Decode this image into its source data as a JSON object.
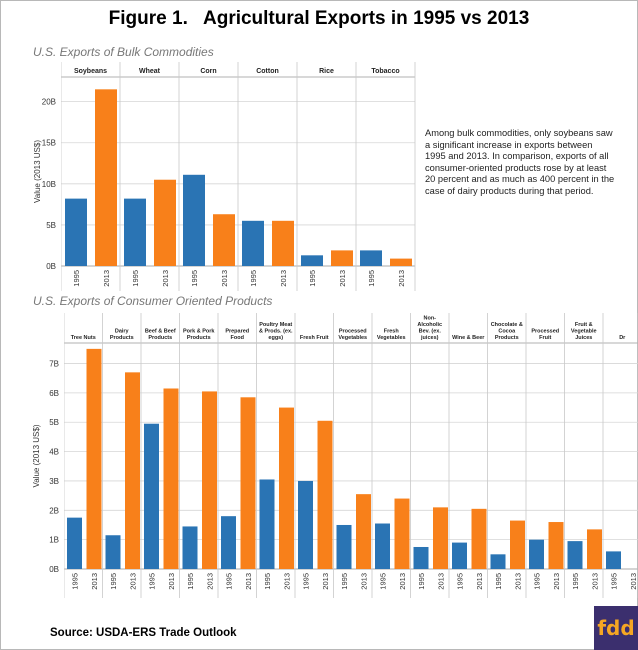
{
  "title": "Figure 1.   Agricultural Exports in 1995 vs 2013",
  "note": "Among bulk commodities, only soybeans saw a significant increase in exports between 1995 and 2013. In comparison, exports of all consumer-oriented products rose by at least  20 percent and as much as 400 percent  in the case of dairy products during that period.",
  "source": "Source: USDA-ERS  Trade Outlook",
  "logo_text": "fdd",
  "colors": {
    "1995": "#2a74b4",
    "2013": "#f8801a",
    "grid": "#d6d6d6"
  },
  "chart_data": [
    {
      "type": "bar",
      "title": "U.S. Exports of Bulk Commodities",
      "ylabel": "Value (2013 US$)",
      "ylim": [
        0,
        23
      ],
      "yticks": [
        0,
        5,
        10,
        15,
        20
      ],
      "ytick_labels": [
        "0B",
        "5B",
        "10B",
        "15B",
        "20B"
      ],
      "years": [
        "1995",
        "2013"
      ],
      "categories": [
        "Soybeans",
        "Wheat",
        "Corn",
        "Cotton",
        "Rice",
        "Tobacco"
      ],
      "series": [
        {
          "year": "1995",
          "values": [
            8.2,
            8.2,
            11.1,
            5.5,
            1.3,
            1.9
          ]
        },
        {
          "year": "2013",
          "values": [
            21.5,
            10.5,
            6.3,
            5.5,
            1.9,
            0.9
          ]
        }
      ]
    },
    {
      "type": "bar",
      "title": "U.S. Exports of Consumer Oriented Products",
      "ylabel": "Value (2013 US$)",
      "ylim": [
        0,
        7.7
      ],
      "yticks": [
        0,
        1,
        2,
        3,
        4,
        5,
        6,
        7
      ],
      "ytick_labels": [
        "0B",
        "1B",
        "2B",
        "3B",
        "4B",
        "5B",
        "6B",
        "7B"
      ],
      "years": [
        "1995",
        "2013"
      ],
      "categories": [
        "Tree Nuts",
        "Dairy Products",
        "Beef & Beef Products",
        "Pork & Pork Products",
        "Prepared Food",
        "Poultry Meat & Prods. (ex. eggs)",
        "Fresh Fruit",
        "Processed Vegetables",
        "Fresh Vegetables",
        "Non-Alcoholic Bev. (ex. juices)",
        "Wine & Beer",
        "Chocolate & Cocoa Products",
        "Processed Fruit",
        "Fruit & Vegetable Juices",
        "Dr"
      ],
      "series": [
        {
          "year": "1995",
          "values": [
            1.75,
            1.15,
            4.95,
            1.45,
            1.8,
            3.05,
            3.0,
            1.5,
            1.55,
            0.75,
            0.9,
            0.5,
            1.0,
            0.95,
            0.6
          ]
        },
        {
          "year": "2013",
          "values": [
            7.5,
            6.7,
            6.15,
            6.05,
            5.85,
            5.5,
            5.05,
            2.55,
            2.4,
            2.1,
            2.05,
            1.65,
            1.6,
            1.35,
            null
          ]
        }
      ]
    }
  ]
}
